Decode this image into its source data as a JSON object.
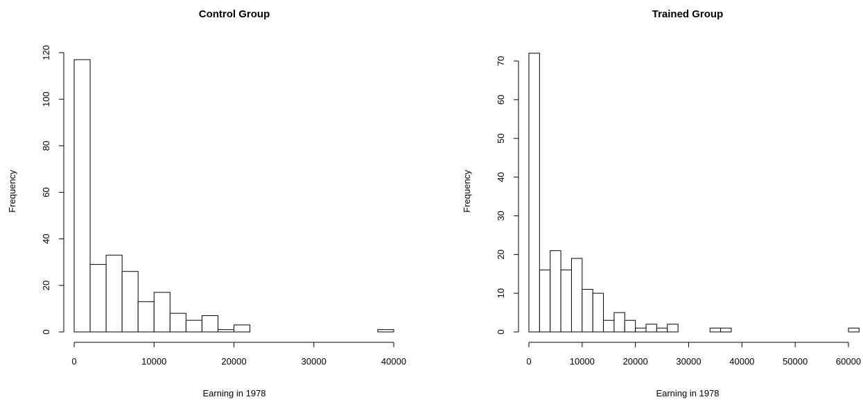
{
  "chart_data": [
    {
      "type": "bar",
      "title": "Control Group",
      "xlabel": "Earning in 1978",
      "ylabel": "Frequency",
      "bin_width": 2000,
      "bin_start": 0,
      "values": [
        117,
        29,
        33,
        26,
        13,
        17,
        8,
        5,
        7,
        1,
        3,
        0,
        0,
        0,
        0,
        0,
        0,
        0,
        0,
        1
      ],
      "xlim": [
        0,
        40000
      ],
      "ylim": [
        0,
        120
      ],
      "xticks": [
        0,
        10000,
        20000,
        30000,
        40000
      ],
      "yticks": [
        0,
        20,
        40,
        60,
        80,
        100,
        120
      ],
      "grid": false
    },
    {
      "type": "bar",
      "title": "Trained Group",
      "xlabel": "Earning in 1978",
      "ylabel": "Frequency",
      "bin_width": 2000,
      "bin_start": 0,
      "values": [
        72,
        16,
        21,
        16,
        19,
        11,
        10,
        3,
        5,
        3,
        1,
        2,
        1,
        2,
        0,
        0,
        0,
        1,
        1,
        0,
        0,
        0,
        0,
        0,
        0,
        0,
        0,
        0,
        0,
        0,
        1
      ],
      "xlim": [
        0,
        60000
      ],
      "ylim": [
        0,
        70
      ],
      "xticks": [
        0,
        10000,
        20000,
        30000,
        40000,
        50000,
        60000
      ],
      "yticks": [
        0,
        10,
        20,
        30,
        40,
        50,
        60,
        70
      ],
      "grid": false
    }
  ]
}
